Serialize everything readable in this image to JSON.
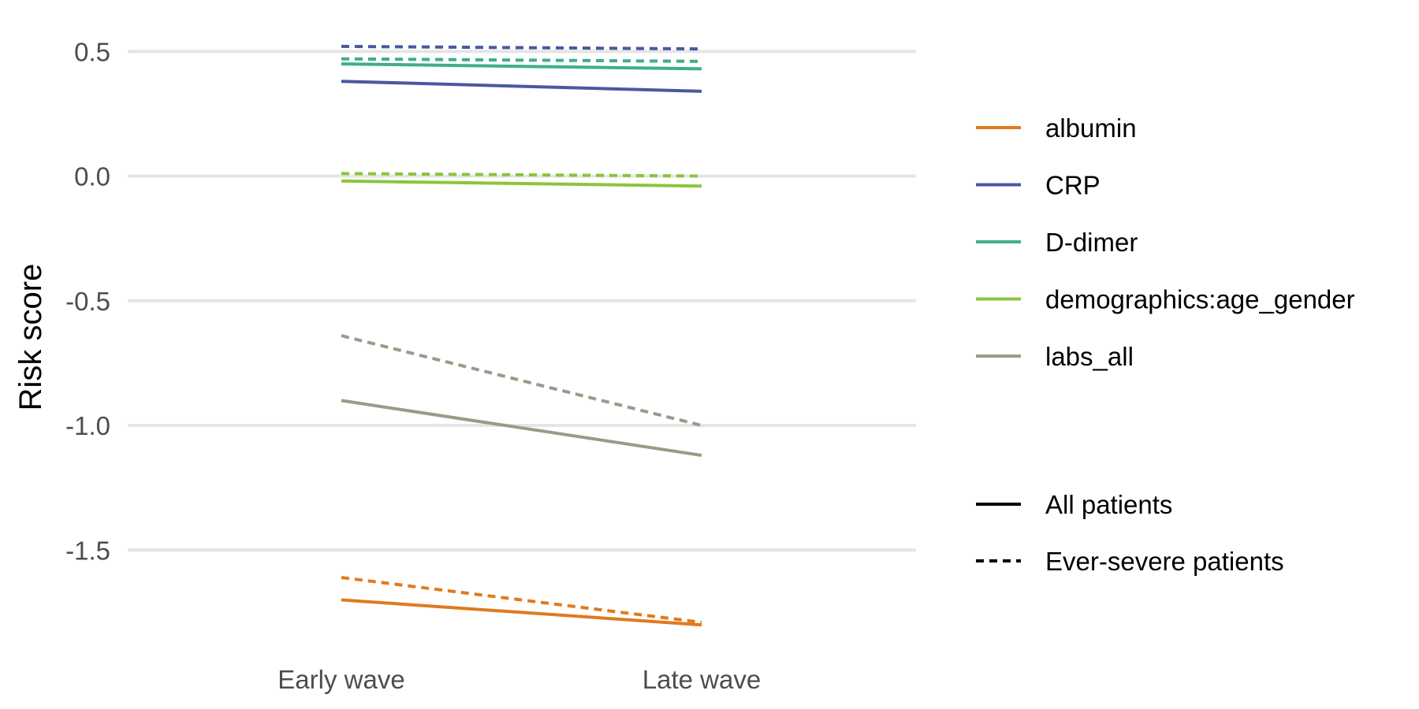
{
  "chart_data": {
    "type": "line",
    "title": "",
    "xlabel": "",
    "ylabel": "Risk score",
    "categories": [
      "Early wave",
      "Late wave"
    ],
    "ylim": [
      -1.9,
      0.55
    ],
    "yticks": [
      "0.5",
      "0.0",
      "-0.5",
      "-1.0",
      "-1.5"
    ],
    "ytick_values": [
      0.5,
      0.0,
      -0.5,
      -1.0,
      -1.5
    ],
    "grid": true,
    "legend_position": "right",
    "series": [
      {
        "name": "albumin",
        "group": "All patients",
        "color": "#e07a1f",
        "dashed": false,
        "values": [
          -1.7,
          -1.8
        ]
      },
      {
        "name": "albumin",
        "group": "Ever-severe patients",
        "color": "#e07a1f",
        "dashed": true,
        "values": [
          -1.61,
          -1.79
        ]
      },
      {
        "name": "CRP",
        "group": "All patients",
        "color": "#4a58a0",
        "dashed": false,
        "values": [
          0.38,
          0.34
        ]
      },
      {
        "name": "CRP",
        "group": "Ever-severe patients",
        "color": "#4a58a0",
        "dashed": true,
        "values": [
          0.52,
          0.51
        ]
      },
      {
        "name": "D-dimer",
        "group": "All patients",
        "color": "#3fae8c",
        "dashed": false,
        "values": [
          0.45,
          0.43
        ]
      },
      {
        "name": "D-dimer",
        "group": "Ever-severe patients",
        "color": "#3fae8c",
        "dashed": true,
        "values": [
          0.47,
          0.46
        ]
      },
      {
        "name": "demographics:age_gender",
        "group": "All patients",
        "color": "#8cc43c",
        "dashed": false,
        "values": [
          -0.02,
          -0.04
        ]
      },
      {
        "name": "demographics:age_gender",
        "group": "Ever-severe patients",
        "color": "#8cc43c",
        "dashed": true,
        "values": [
          0.01,
          0.0
        ]
      },
      {
        "name": "labs_all",
        "group": "All patients",
        "color": "#9a9a88",
        "dashed": false,
        "values": [
          -0.9,
          -1.12
        ]
      },
      {
        "name": "labs_all",
        "group": "Ever-severe patients",
        "color": "#9a9a88",
        "dashed": true,
        "values": [
          -0.64,
          -1.0
        ]
      }
    ],
    "legend_colors": [
      {
        "label": "albumin",
        "color": "#e07a1f"
      },
      {
        "label": "CRP",
        "color": "#4a58a0"
      },
      {
        "label": "D-dimer",
        "color": "#3fae8c"
      },
      {
        "label": "demographics:age_gender",
        "color": "#8cc43c"
      },
      {
        "label": "labs_all",
        "color": "#9a9a88"
      }
    ],
    "legend_linetypes": [
      {
        "label": "All patients",
        "dashed": false
      },
      {
        "label": "Ever-severe patients",
        "dashed": true
      }
    ]
  }
}
